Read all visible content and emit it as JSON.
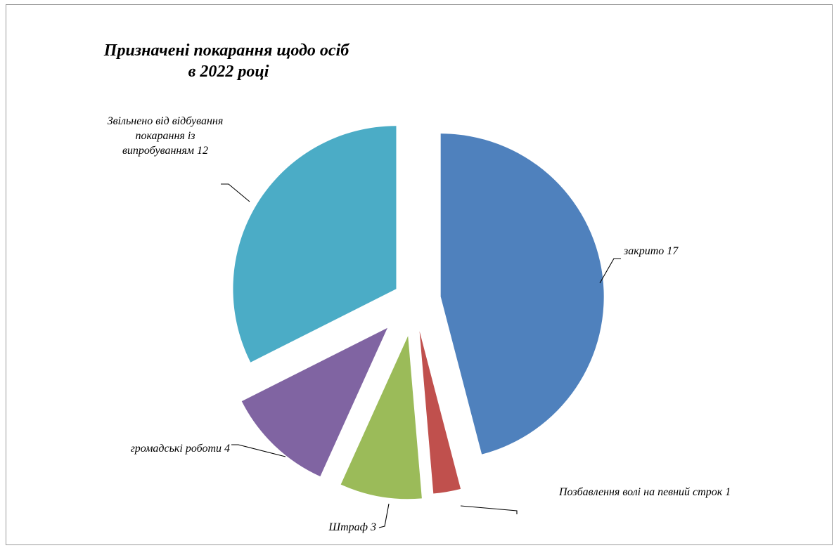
{
  "chart_data": {
    "type": "pie",
    "title": [
      "Призначені покарання щодо осіб",
      "в 2022 році"
    ],
    "slices": [
      {
        "label": "закрито",
        "value": 17,
        "color": "#4F81BD"
      },
      {
        "label": "Позбавлення волі на певний строк",
        "value": 1,
        "color": "#C0504D"
      },
      {
        "label": "Штраф",
        "value": 3,
        "color": "#9BBB59"
      },
      {
        "label": "громадські роботи",
        "value": 4,
        "color": "#8064A2"
      },
      {
        "label": "Звільнено від відбування покарання із випробуванням",
        "value": 12,
        "color": "#4BACC6"
      }
    ],
    "data_labels": [
      [
        "закрито 17"
      ],
      [
        "Позбавлення волі на певний строк 1"
      ],
      [
        "Штраф 3"
      ],
      [
        "громадські роботи 4"
      ],
      [
        "Звільнено від відбування",
        "покарання із",
        "випробуванням 12"
      ]
    ],
    "exploded": true
  }
}
